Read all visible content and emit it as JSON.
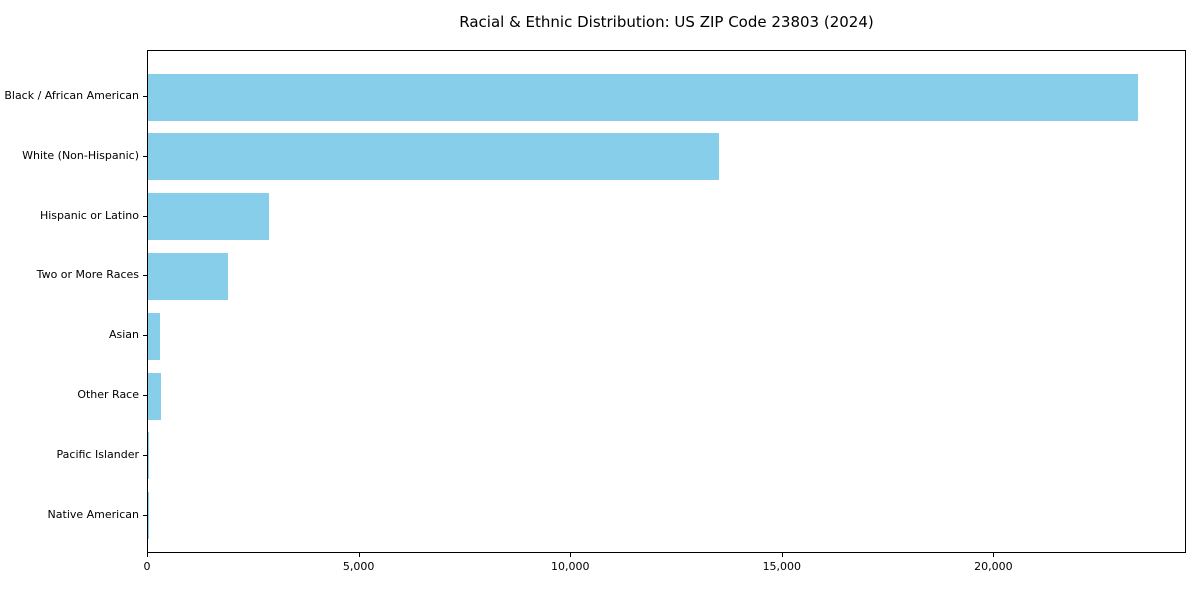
{
  "chart_data": {
    "type": "bar",
    "orientation": "horizontal",
    "title": "Racial & Ethnic Distribution: US ZIP Code 23803 (2024)",
    "categories": [
      "Black / African American",
      "White (Non-Hispanic)",
      "Hispanic or Latino",
      "Two or More Races",
      "Asian",
      "Other Race",
      "Pacific Islander",
      "Native American"
    ],
    "values": [
      23390,
      13500,
      2850,
      1900,
      275,
      305,
      25,
      12
    ],
    "xlabel": "",
    "ylabel": "",
    "xlim": [
      0,
      24550
    ],
    "x_ticks": [
      0,
      5000,
      10000,
      15000,
      20000
    ],
    "x_tick_labels": [
      "0",
      "5,000",
      "10,000",
      "15,000",
      "20,000"
    ],
    "bar_color": "#87CEEB",
    "spine_color": "#000000",
    "grid": false,
    "legend": null
  }
}
